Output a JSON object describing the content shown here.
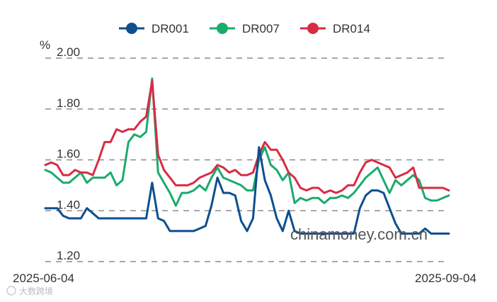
{
  "chart_data": {
    "type": "line",
    "ylabel": "%",
    "ylim": [
      1.2,
      2.0
    ],
    "yticks": [
      "2.00",
      "1.80",
      "1.60",
      "1.40",
      "1.20"
    ],
    "x_first_label": "2025-06-04",
    "x_last_label": "2025-09-04",
    "grid": true,
    "legend_position": "top-center",
    "watermark": "chinamoney.com.cn",
    "series": [
      {
        "name": "DR001",
        "color": "#0e4f8f",
        "values": [
          1.41,
          1.41,
          1.41,
          1.38,
          1.37,
          1.37,
          1.37,
          1.41,
          1.39,
          1.37,
          1.37,
          1.37,
          1.37,
          1.37,
          1.37,
          1.37,
          1.37,
          1.37,
          1.51,
          1.37,
          1.36,
          1.32,
          1.32,
          1.32,
          1.32,
          1.32,
          1.33,
          1.34,
          1.42,
          1.53,
          1.47,
          1.47,
          1.46,
          1.36,
          1.32,
          1.37,
          1.65,
          1.52,
          1.46,
          1.37,
          1.32,
          1.4,
          1.32,
          1.31,
          1.31,
          1.31,
          1.31,
          1.31,
          1.31,
          1.31,
          1.31,
          1.31,
          1.31,
          1.41,
          1.46,
          1.48,
          1.48,
          1.47,
          1.41,
          1.35,
          1.31,
          1.31,
          1.31,
          1.31,
          1.33,
          1.31,
          1.31,
          1.31,
          1.31
        ]
      },
      {
        "name": "DR007",
        "color": "#1aab6e",
        "values": [
          1.56,
          1.55,
          1.53,
          1.51,
          1.51,
          1.53,
          1.55,
          1.51,
          1.53,
          1.53,
          1.53,
          1.55,
          1.5,
          1.52,
          1.67,
          1.7,
          1.69,
          1.71,
          1.92,
          1.55,
          1.51,
          1.47,
          1.42,
          1.47,
          1.47,
          1.48,
          1.5,
          1.48,
          1.53,
          1.57,
          1.53,
          1.52,
          1.51,
          1.5,
          1.48,
          1.48,
          1.6,
          1.65,
          1.58,
          1.56,
          1.52,
          1.55,
          1.43,
          1.45,
          1.44,
          1.45,
          1.45,
          1.43,
          1.45,
          1.45,
          1.46,
          1.45,
          1.47,
          1.5,
          1.53,
          1.55,
          1.57,
          1.52,
          1.47,
          1.52,
          1.5,
          1.52,
          1.54,
          1.52,
          1.45,
          1.44,
          1.44,
          1.45,
          1.46
        ]
      },
      {
        "name": "DR014",
        "color": "#d92b44",
        "values": [
          1.58,
          1.59,
          1.58,
          1.54,
          1.54,
          1.56,
          1.55,
          1.55,
          1.54,
          1.6,
          1.67,
          1.67,
          1.72,
          1.71,
          1.72,
          1.72,
          1.75,
          1.77,
          1.91,
          1.62,
          1.56,
          1.53,
          1.5,
          1.5,
          1.5,
          1.51,
          1.53,
          1.54,
          1.55,
          1.58,
          1.57,
          1.55,
          1.56,
          1.54,
          1.54,
          1.55,
          1.62,
          1.67,
          1.64,
          1.64,
          1.6,
          1.55,
          1.53,
          1.49,
          1.48,
          1.49,
          1.49,
          1.47,
          1.48,
          1.47,
          1.48,
          1.5,
          1.5,
          1.55,
          1.59,
          1.6,
          1.59,
          1.58,
          1.57,
          1.53,
          1.54,
          1.55,
          1.57,
          1.49,
          1.49,
          1.49,
          1.49,
          1.49,
          1.48
        ]
      }
    ]
  },
  "footer_logo_text": "大数跨境"
}
